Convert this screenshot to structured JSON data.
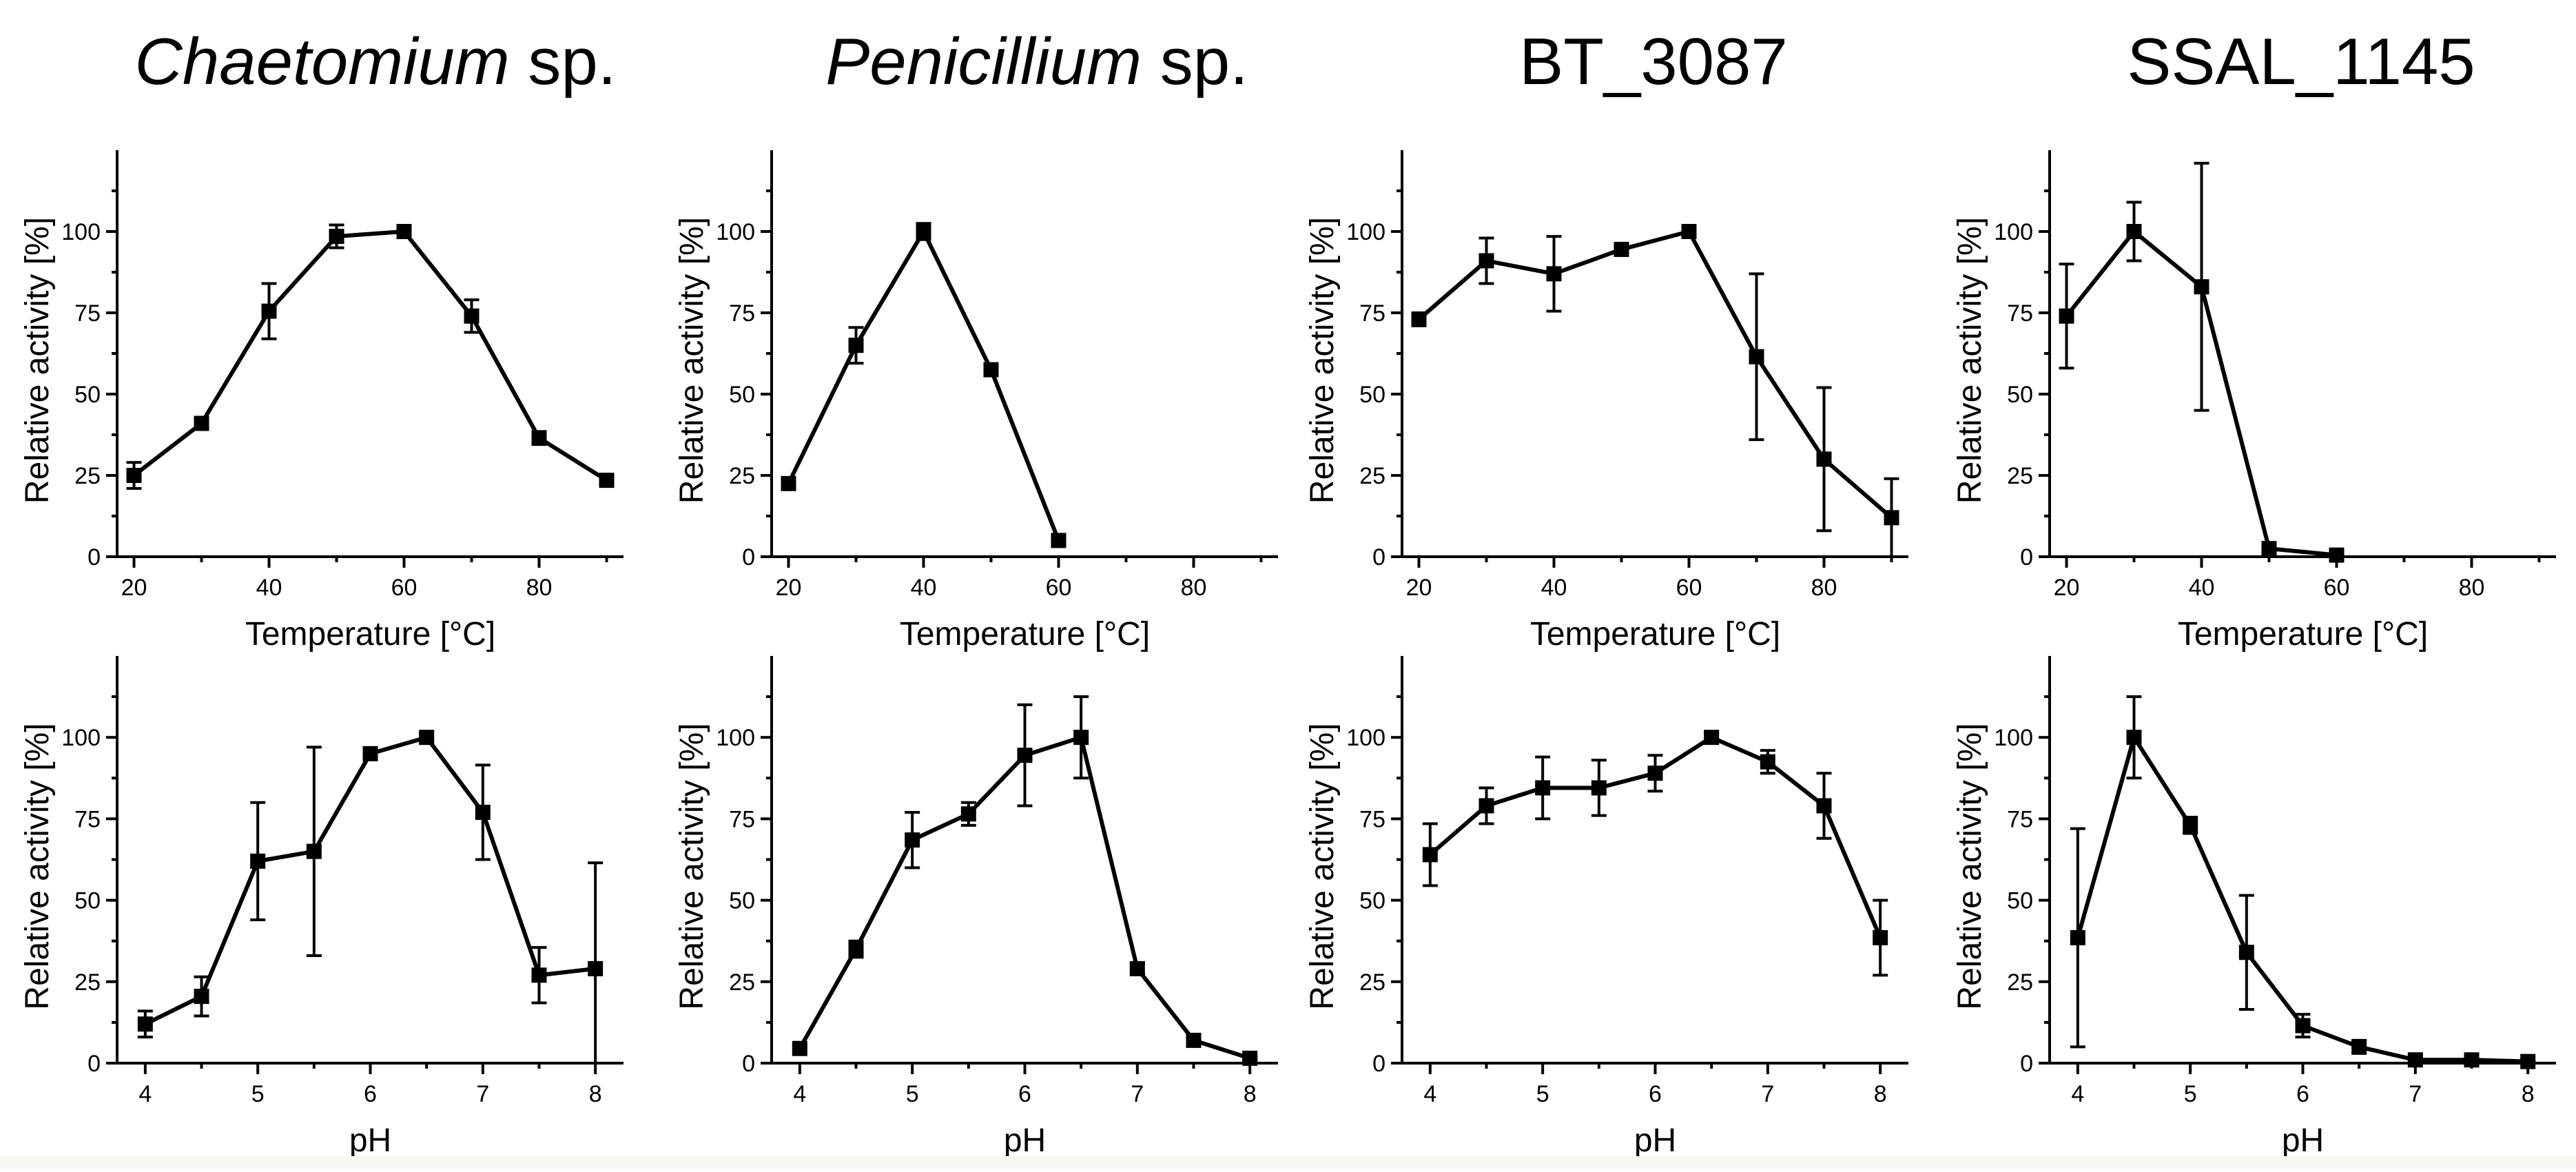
{
  "chart_data": [
    {
      "type": "line",
      "column_title": {
        "italic": "Chaetomium",
        "plain": " sp."
      },
      "xlabel": "Temperature [°C]",
      "ylabel": "Relative activity [%]",
      "xlim": [
        17.5,
        92.5
      ],
      "ylim": [
        0,
        125
      ],
      "xticks": [
        20,
        40,
        60,
        80
      ],
      "yticks": [
        0,
        25,
        50,
        75,
        100
      ],
      "x": [
        20,
        30,
        40,
        50,
        60,
        70,
        80,
        90
      ],
      "values": [
        25,
        41,
        75.5,
        98.5,
        100,
        74,
        36.5,
        23.5
      ],
      "errors": [
        4,
        1.5,
        8.5,
        3.5,
        1,
        5,
        2,
        1
      ]
    },
    {
      "type": "line",
      "column_title": {
        "italic": "Penicillium",
        "plain": " sp."
      },
      "xlabel": "Temperature [°C]",
      "ylabel": "Relative activity [%]",
      "xlim": [
        17.5,
        92.5
      ],
      "ylim": [
        0,
        125
      ],
      "xticks": [
        20,
        40,
        60,
        80
      ],
      "yticks": [
        0,
        25,
        50,
        75,
        100
      ],
      "x": [
        20,
        30,
        40,
        50,
        60
      ],
      "values": [
        22.5,
        65,
        100,
        57.5,
        5
      ],
      "errors": [
        1,
        5.5,
        2.5,
        1.5,
        1
      ]
    },
    {
      "type": "line",
      "column_title": {
        "italic": "",
        "plain": "BT_3087"
      },
      "xlabel": "Temperature [°C]",
      "ylabel": "Relative activity [%]",
      "xlim": [
        17.5,
        92.5
      ],
      "ylim": [
        0,
        125
      ],
      "xticks": [
        20,
        40,
        60,
        80
      ],
      "yticks": [
        0,
        25,
        50,
        75,
        100
      ],
      "x": [
        20,
        30,
        40,
        50,
        60,
        70,
        80,
        90
      ],
      "values": [
        73,
        91,
        87,
        94.5,
        100,
        61.5,
        30,
        12
      ],
      "errors": [
        2,
        7,
        11.5,
        1.5,
        1,
        25.5,
        22,
        12
      ]
    },
    {
      "type": "line",
      "column_title": {
        "italic": "",
        "plain": "SSAL_1145"
      },
      "xlabel": "Temperature [°C]",
      "ylabel": "Relative activity [%]",
      "xlim": [
        17.5,
        92.5
      ],
      "ylim": [
        0,
        125
      ],
      "xticks": [
        20,
        40,
        60,
        80
      ],
      "yticks": [
        0,
        25,
        50,
        75,
        100
      ],
      "x": [
        20,
        30,
        40,
        50,
        60
      ],
      "values": [
        74,
        100,
        83,
        2.5,
        0.5
      ],
      "errors": [
        16,
        9,
        38,
        1,
        0.5
      ]
    },
    {
      "type": "line",
      "xlabel": "pH",
      "ylabel": "Relative activity [%]",
      "xlim": [
        3.75,
        8.25
      ],
      "ylim": [
        0,
        125
      ],
      "xticks": [
        4,
        5,
        6,
        7,
        8
      ],
      "yticks": [
        0,
        25,
        50,
        75,
        100
      ],
      "x": [
        4,
        4.5,
        5,
        5.5,
        6,
        6.5,
        7,
        7.5,
        8
      ],
      "values": [
        12,
        20.5,
        62,
        65,
        95,
        100,
        77,
        27,
        29
      ],
      "errors": [
        4,
        6,
        18,
        32,
        1.5,
        1.5,
        14.5,
        8.5,
        32.5
      ]
    },
    {
      "type": "line",
      "xlabel": "pH",
      "ylabel": "Relative activity [%]",
      "xlim": [
        3.75,
        8.25
      ],
      "ylim": [
        0,
        125
      ],
      "xticks": [
        4,
        5,
        6,
        7,
        8
      ],
      "yticks": [
        0,
        25,
        50,
        75,
        100
      ],
      "x": [
        4,
        4.5,
        5,
        5.5,
        6,
        6.5,
        7,
        7.5,
        8
      ],
      "values": [
        4.5,
        35,
        68.5,
        76.5,
        94.5,
        100,
        29,
        7,
        1.5
      ],
      "errors": [
        1,
        2.5,
        8.5,
        3.5,
        15.5,
        12.5,
        1.5,
        1,
        0.5
      ]
    },
    {
      "type": "line",
      "xlabel": "pH",
      "ylabel": "Relative activity [%]",
      "xlim": [
        3.75,
        8.25
      ],
      "ylim": [
        0,
        125
      ],
      "xticks": [
        4,
        5,
        6,
        7,
        8
      ],
      "yticks": [
        0,
        25,
        50,
        75,
        100
      ],
      "x": [
        4,
        4.5,
        5,
        5.5,
        6,
        6.5,
        7,
        7.5,
        8
      ],
      "values": [
        64,
        79,
        84.5,
        84.5,
        89,
        100,
        92.5,
        79,
        38.5
      ],
      "errors": [
        9.5,
        5.5,
        9.5,
        8.5,
        5.5,
        1.5,
        3.5,
        10,
        11.5
      ]
    },
    {
      "type": "line",
      "xlabel": "pH",
      "ylabel": "Relative activity [%]",
      "xlim": [
        3.75,
        8.25
      ],
      "ylim": [
        0,
        125
      ],
      "xticks": [
        4,
        5,
        6,
        7,
        8
      ],
      "yticks": [
        0,
        25,
        50,
        75,
        100
      ],
      "x": [
        4,
        4.5,
        5,
        5.5,
        6,
        6.5,
        7,
        7.5,
        8
      ],
      "values": [
        38.5,
        100,
        73,
        34,
        11.5,
        5,
        1,
        1,
        0.5
      ],
      "errors": [
        33.5,
        12.5,
        2.5,
        17.5,
        3.5,
        2,
        0.5,
        0.5,
        0.5
      ]
    }
  ]
}
